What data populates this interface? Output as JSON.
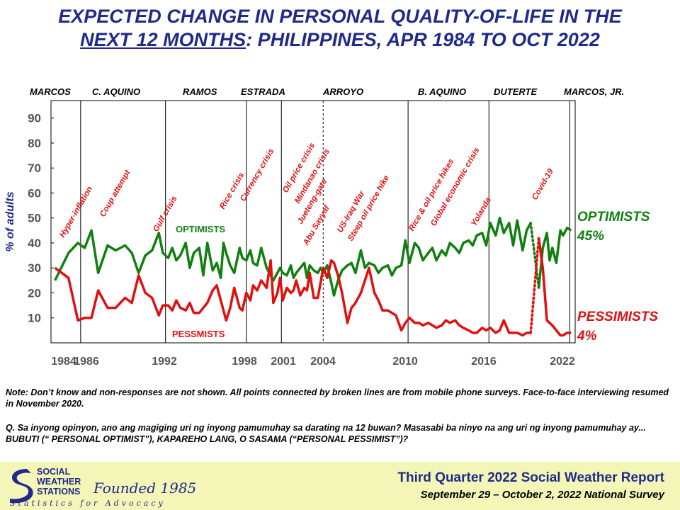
{
  "title": {
    "line1": "EXPECTED CHANGE IN PERSONAL QUALITY-OF-LIFE IN THE",
    "line2_underlined": "NEXT 12 MONTHS",
    "line2_rest": ": PHILIPPINES, APR 1984 TO OCT 2022"
  },
  "administrations": [
    "MARCOS",
    "C. AQUINO",
    "RAMOS",
    "ESTRADA",
    "ARROYO",
    "B. AQUINO",
    "DUTERTE",
    "MARCOS, JR."
  ],
  "chart_data": {
    "type": "line",
    "ylabel": "% of adults",
    "ylim": [
      0,
      90
    ],
    "yticks": [
      10,
      20,
      30,
      40,
      50,
      60,
      70,
      80,
      90
    ],
    "xlim": [
      1984,
      2022.9
    ],
    "xticks": [
      "1984",
      "1986",
      "1992",
      "1998",
      "2001",
      "2004",
      "2010",
      "2016",
      "2022"
    ],
    "admin_dividers": [
      1986.2,
      1992.5,
      1998.5,
      2001.1,
      2010.5,
      2016.5,
      2022.5
    ],
    "admin_dividers_dashed": [
      2004.2
    ],
    "grid": false,
    "series": [
      {
        "name": "OPTIMISTS",
        "inline_label": "OPTIMISTS",
        "end_value_label": "45%",
        "color": "#118011",
        "x": [
          1984.3,
          1985.3,
          1986.0,
          1986.5,
          1987.0,
          1987.5,
          1988.2,
          1988.8,
          1989.5,
          1990.0,
          1990.5,
          1991.0,
          1991.5,
          1992.0,
          1992.3,
          1992.7,
          1993.0,
          1993.3,
          1993.6,
          1994.0,
          1994.3,
          1994.6,
          1995.0,
          1995.3,
          1995.6,
          1996.0,
          1996.3,
          1996.6,
          1996.8,
          1997.0,
          1997.3,
          1997.6,
          1998.0,
          1998.2,
          1998.5,
          1998.8,
          1999.0,
          1999.3,
          1999.6,
          2000.0,
          2000.3,
          2000.5,
          2000.8,
          2001.0,
          2001.2,
          2001.5,
          2001.8,
          2002.0,
          2002.2,
          2002.5,
          2002.8,
          2003.0,
          2003.2,
          2003.5,
          2003.8,
          2004.0,
          2004.2,
          2004.5,
          2004.8,
          2005.0,
          2005.3,
          2005.6,
          2006.0,
          2006.3,
          2006.6,
          2007.0,
          2007.3,
          2007.6,
          2008.0,
          2008.3,
          2008.6,
          2009.0,
          2009.3,
          2009.6,
          2010.0,
          2010.3,
          2010.6,
          2011.0,
          2011.3,
          2011.6,
          2012.0,
          2012.3,
          2012.6,
          2013.0,
          2013.3,
          2013.6,
          2014.0,
          2014.3,
          2014.6,
          2015.0,
          2015.3,
          2015.6,
          2016.0,
          2016.3,
          2016.6,
          2017.0,
          2017.3,
          2017.6,
          2018.0,
          2018.3,
          2018.6,
          2019.0,
          2019.3,
          2019.6
        ],
        "values": [
          25,
          36,
          40,
          38,
          45,
          28,
          39,
          37,
          39,
          36,
          28,
          35,
          37,
          44,
          36,
          34,
          38,
          33,
          35,
          40,
          30,
          36,
          38,
          27,
          40,
          29,
          32,
          26,
          40,
          36,
          31,
          28,
          38,
          34,
          33,
          37,
          32,
          31,
          38,
          30,
          27,
          25,
          28,
          30,
          28,
          27,
          31,
          26,
          28,
          30,
          32,
          26,
          31,
          29,
          28,
          30,
          28,
          31,
          24,
          19,
          25,
          29,
          31,
          32,
          28,
          37,
          30,
          32,
          31,
          28,
          30,
          31,
          27,
          30,
          31,
          41,
          32,
          40,
          38,
          33,
          36,
          38,
          33,
          37,
          35,
          40,
          38,
          36,
          40,
          41,
          39,
          43,
          44,
          39,
          48,
          43,
          50,
          44,
          48,
          39,
          49,
          37,
          45,
          48
        ],
        "mobile_survey_x": [
          2019.6,
          2020.2
        ],
        "mobile_survey_values": [
          48,
          22
        ],
        "tail_x": [
          2020.2,
          2020.5,
          2020.8,
          2021.0,
          2021.2,
          2021.5,
          2021.8,
          2022.0,
          2022.3,
          2022.6
        ],
        "tail_values": [
          22,
          38,
          44,
          33,
          38,
          32,
          45,
          43,
          46,
          45
        ]
      },
      {
        "name": "PESSIMISTS",
        "inline_label": "PESSMISTS",
        "end_value_label": "4%",
        "color": "#e01010",
        "x": [
          1984.3,
          1984.8,
          1985.3,
          1986.0,
          1986.5,
          1987.0,
          1987.5,
          1988.2,
          1988.8,
          1989.5,
          1990.0,
          1990.5,
          1991.0,
          1991.5,
          1992.0,
          1992.3,
          1992.7,
          1993.0,
          1993.3,
          1993.6,
          1994.0,
          1994.3,
          1994.6,
          1995.0,
          1995.3,
          1995.6,
          1996.0,
          1996.3,
          1996.6,
          1996.8,
          1997.0,
          1997.3,
          1997.6,
          1998.0,
          1998.2,
          1998.5,
          1998.8,
          1999.0,
          1999.3,
          1999.6,
          2000.0,
          2000.3,
          2000.5,
          2000.8,
          2001.0,
          2001.2,
          2001.5,
          2001.8,
          2002.0,
          2002.2,
          2002.5,
          2002.8,
          2003.0,
          2003.2,
          2003.5,
          2003.8,
          2004.0,
          2004.2,
          2004.5,
          2004.8,
          2005.0,
          2005.3,
          2005.6,
          2006.0,
          2006.3,
          2006.6,
          2007.0,
          2007.3,
          2007.6,
          2008.0,
          2008.3,
          2008.6,
          2009.0,
          2009.3,
          2009.6,
          2010.0,
          2010.3,
          2010.6,
          2011.0,
          2011.3,
          2011.6,
          2012.0,
          2012.3,
          2012.6,
          2013.0,
          2013.3,
          2013.6,
          2014.0,
          2014.3,
          2014.6,
          2015.0,
          2015.3,
          2015.6,
          2016.0,
          2016.3,
          2016.6,
          2017.0,
          2017.3,
          2017.6,
          2018.0,
          2018.3,
          2018.6,
          2019.0,
          2019.3,
          2019.6
        ],
        "values": [
          30,
          28,
          26,
          9,
          10,
          10,
          21,
          14,
          14,
          18,
          16,
          27,
          20,
          18,
          11,
          15,
          15,
          13,
          17,
          14,
          13,
          16,
          12,
          12,
          14,
          16,
          21,
          23,
          17,
          13,
          9,
          14,
          22,
          14,
          13,
          20,
          17,
          23,
          21,
          25,
          22,
          33,
          16,
          20,
          26,
          17,
          22,
          20,
          21,
          25,
          19,
          22,
          21,
          28,
          18,
          18,
          24,
          30,
          26,
          33,
          32,
          27,
          20,
          8,
          14,
          16,
          20,
          25,
          30,
          20,
          17,
          13,
          13,
          12,
          11,
          5,
          8,
          10,
          8,
          8,
          7,
          8,
          7,
          6,
          7,
          9,
          8,
          9,
          7,
          6,
          5,
          4,
          4,
          6,
          5,
          6,
          4,
          5,
          9,
          4,
          4,
          4,
          3,
          4,
          4
        ],
        "mobile_survey_x": [
          2019.6,
          2020.2
        ],
        "mobile_survey_values": [
          4,
          42
        ],
        "tail_x": [
          2020.2,
          2020.5,
          2020.8,
          2021.0,
          2021.2,
          2021.5,
          2021.8,
          2022.0,
          2022.3,
          2022.6
        ],
        "tail_values": [
          42,
          30,
          9,
          8,
          7,
          5,
          3,
          3,
          4,
          4
        ]
      }
    ],
    "annotations": [
      "Hyper-inflation",
      "Coup attempt",
      "Gulf crisis",
      "Rice crisis",
      "Currency crisis",
      "Oil price crisis",
      "Mindanao crisis",
      "Jueteng-gate",
      "Abu Sayyaf",
      "US-Iraq War",
      "Steep oil price hike",
      "Rice & oil price hikes",
      "Global economic crisis",
      "Yolanda",
      "Covid-19"
    ],
    "right_labels": {
      "optimists_name": "OPTIMISTS",
      "optimists_value": "45%",
      "pessimists_name": "PESSIMISTS",
      "pessimists_value": "4%"
    }
  },
  "notes": {
    "note": "Note: Don’t know and non-responses are not shown. All points connected by broken lines are from mobile phone surveys. Face-to-face interviewing resumed in November 2020.",
    "question": "Q. Sa inyong opinyon, ano ang magiging  uri ng inyong pamumuhay sa darating na 12 buwan? Masasabi ba ninyo na ang uri ng inyong pamumuhay ay... BUBUTI (“ PERSONAL OPTIMIST”), KAPAREHO LANG, O SASAMA (“PERSONAL PESSIMIST”)?"
  },
  "footer": {
    "report": "Third Quarter 2022 Social Weather Report",
    "survey": "September 29 – October 2, 2022 National Survey",
    "logo_line1": "SOCIAL",
    "logo_line2": "WEATHER",
    "logo_line3": "STATIONS",
    "founded": "Founded 1985",
    "tagline": "Statistics for Advocacy"
  },
  "colors": {
    "title": "#1f2a8a",
    "optimists": "#118011",
    "pessimists": "#e01010",
    "footer_bg": "#f4f6b8"
  }
}
